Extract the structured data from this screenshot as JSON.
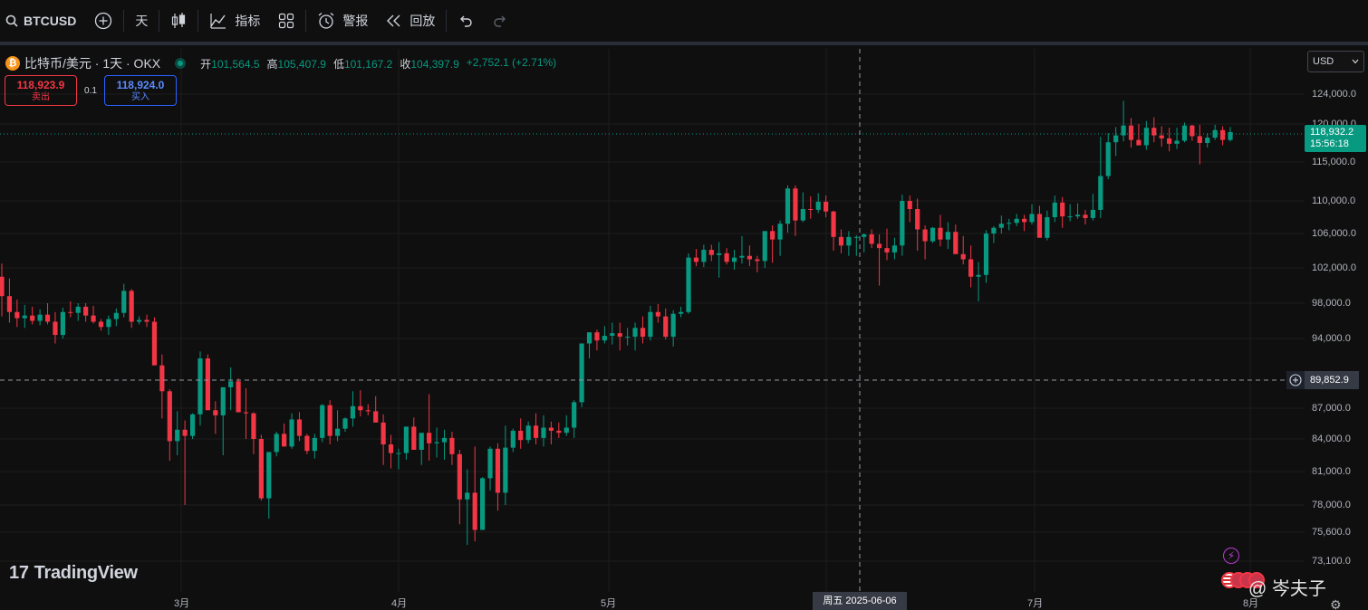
{
  "toolbar": {
    "symbol": "BTCUSD",
    "interval": "天",
    "indicators_label": "指标",
    "alert_label": "警报",
    "replay_label": "回放"
  },
  "legend": {
    "coin_glyph": "₿",
    "title": "比特币/美元 · 1天 · OKX",
    "open_label": "开",
    "open": "101,564.5",
    "high_label": "高",
    "high": "105,407.9",
    "low_label": "低",
    "low": "101,167.2",
    "close_label": "收",
    "close": "104,397.9",
    "change": "+2,752.1 (+2.71%)"
  },
  "trade": {
    "sell_price": "118,923.9",
    "sell_label": "卖出",
    "spread": "0.1",
    "buy_price": "118,924.0",
    "buy_label": "买入"
  },
  "currency": "USD",
  "price_axis": {
    "ticks": [
      "124,000.0",
      "120,000.0",
      "115,000.0",
      "110,000.0",
      "106,000.0",
      "102,000.0",
      "98,000.0",
      "94,000.0",
      "89,852.9",
      "87,000.0",
      "84,000.0",
      "81,000.0",
      "78,000.0",
      "75,600.0",
      "73,100.0"
    ],
    "last_price": "118,932.2",
    "countdown": "15:56:18",
    "crosshair_price": "89,852.9"
  },
  "time_axis": {
    "months": [
      "3月",
      "4月",
      "5月",
      "7月",
      "8月"
    ],
    "crosshair_date": "周五 2025-06-06"
  },
  "logo": {
    "mark": "17",
    "text": "TradingView"
  },
  "watermark": "@ 岑夫子",
  "colors": {
    "up": "#089981",
    "down": "#f23645",
    "bg": "#0f0f0f",
    "grid": "#1e1e1e"
  },
  "chart_data": {
    "type": "candlestick",
    "series_ohlc": [
      [
        101000,
        102500,
        96500,
        98800
      ],
      [
        98800,
        100800,
        95800,
        97000
      ],
      [
        97000,
        98400,
        95300,
        96300
      ],
      [
        96300,
        97800,
        95200,
        96600
      ],
      [
        96600,
        97600,
        95600,
        96000
      ],
      [
        96000,
        97300,
        95500,
        96700
      ],
      [
        96700,
        98000,
        95600,
        95900
      ],
      [
        95900,
        97000,
        93500,
        94400
      ],
      [
        94400,
        97500,
        94000,
        97000
      ],
      [
        97000,
        98200,
        96400,
        96900
      ],
      [
        96900,
        98000,
        96000,
        97600
      ],
      [
        97600,
        98000,
        95900,
        96600
      ],
      [
        96600,
        97700,
        95700,
        95900
      ],
      [
        95900,
        96200,
        94900,
        95300
      ],
      [
        95300,
        96600,
        94400,
        96200
      ],
      [
        96200,
        97400,
        95400,
        96900
      ],
      [
        96900,
        100200,
        96400,
        99400
      ],
      [
        99400,
        99600,
        95200,
        95900
      ],
      [
        95900,
        96500,
        95600,
        96100
      ],
      [
        96100,
        96700,
        95300,
        95900
      ],
      [
        95900,
        96400,
        91800,
        91300
      ],
      [
        91300,
        92400,
        86000,
        88700
      ],
      [
        88700,
        88900,
        82000,
        83800
      ],
      [
        83800,
        86700,
        82500,
        84900
      ],
      [
        84900,
        85800,
        78000,
        84300
      ],
      [
        84300,
        86500,
        84000,
        86400
      ],
      [
        86400,
        92700,
        85300,
        92000
      ],
      [
        92000,
        92400,
        88000,
        86800
      ],
      [
        86800,
        87700,
        84500,
        86300
      ],
      [
        86300,
        86600,
        82500,
        89100
      ],
      [
        89100,
        91100,
        86800,
        89700
      ],
      [
        89700,
        90000,
        86700,
        86600
      ],
      [
        86600,
        89000,
        84000,
        86500
      ],
      [
        86500,
        86600,
        82600,
        84000
      ],
      [
        84000,
        84400,
        78400,
        78600
      ],
      [
        78600,
        81400,
        76800,
        82800
      ],
      [
        82800,
        84700,
        82400,
        84500
      ],
      [
        84500,
        85500,
        83800,
        83300
      ],
      [
        83300,
        86500,
        83100,
        85900
      ],
      [
        85900,
        86600,
        83800,
        84300
      ],
      [
        84300,
        84500,
        82600,
        82900
      ],
      [
        82900,
        84500,
        82200,
        84100
      ],
      [
        84100,
        87400,
        83700,
        87300
      ],
      [
        87300,
        87800,
        83500,
        84300
      ],
      [
        84300,
        86800,
        83800,
        85000
      ],
      [
        85000,
        86100,
        84700,
        86000
      ],
      [
        86000,
        88700,
        85200,
        87200
      ],
      [
        87200,
        88800,
        86200,
        86800
      ],
      [
        86800,
        87400,
        86300,
        86700
      ],
      [
        86700,
        88200,
        85700,
        85600
      ],
      [
        85600,
        86400,
        81600,
        83500
      ],
      [
        83500,
        84400,
        81300,
        82700
      ],
      [
        82700,
        83100,
        81200,
        82700
      ],
      [
        82700,
        85200,
        82100,
        85200
      ],
      [
        85200,
        86100,
        83500,
        83000
      ],
      [
        83000,
        84300,
        81600,
        84600
      ],
      [
        84600,
        88400,
        82000,
        83600
      ],
      [
        83600,
        85100,
        82300,
        83700
      ],
      [
        83700,
        84900,
        82100,
        84100
      ],
      [
        84100,
        84700,
        81600,
        82600
      ],
      [
        82600,
        83000,
        76300,
        78500
      ],
      [
        78500,
        81200,
        74500,
        79100
      ],
      [
        79100,
        83300,
        74800,
        75800
      ],
      [
        75800,
        80500,
        77000,
        80400
      ],
      [
        80400,
        83300,
        79300,
        83100
      ],
      [
        83100,
        83600,
        77500,
        79100
      ],
      [
        79100,
        85300,
        78000,
        83200
      ],
      [
        83200,
        85000,
        82800,
        84800
      ],
      [
        84800,
        86000,
        83100,
        83900
      ],
      [
        83900,
        85700,
        83600,
        85300
      ],
      [
        85300,
        86500,
        83500,
        84100
      ],
      [
        84100,
        86300,
        83300,
        85100
      ],
      [
        85100,
        85700,
        83500,
        84800
      ],
      [
        84800,
        85600,
        84100,
        84600
      ],
      [
        84600,
        86300,
        84300,
        85100
      ],
      [
        85100,
        87800,
        84100,
        87600
      ],
      [
        87600,
        91500,
        87100,
        93500
      ],
      [
        93500,
        94500,
        92000,
        94700
      ],
      [
        94700,
        95000,
        92800,
        93800
      ],
      [
        93800,
        95400,
        93500,
        94300
      ],
      [
        94300,
        95800,
        93400,
        94600
      ],
      [
        94600,
        95800,
        92800,
        94200
      ],
      [
        94200,
        95200,
        93300,
        94200
      ],
      [
        94200,
        95800,
        92800,
        95200
      ],
      [
        95200,
        96500,
        93500,
        94200
      ],
      [
        94200,
        97700,
        93800,
        97000
      ],
      [
        97000,
        97900,
        95800,
        96500
      ],
      [
        96500,
        97400,
        93900,
        94200
      ],
      [
        94200,
        97200,
        93200,
        96800
      ],
      [
        96800,
        97600,
        96400,
        97000
      ],
      [
        97000,
        103700,
        96800,
        103200
      ],
      [
        103200,
        104200,
        102200,
        102700
      ],
      [
        102700,
        104700,
        102100,
        104100
      ],
      [
        104100,
        104700,
        102800,
        103500
      ],
      [
        103500,
        105000,
        100900,
        103700
      ],
      [
        103700,
        104300,
        102400,
        102700
      ],
      [
        102700,
        104100,
        101800,
        103200
      ],
      [
        103200,
        105700,
        102500,
        103400
      ],
      [
        103400,
        104600,
        102200,
        103000
      ],
      [
        103000,
        103400,
        101500,
        102800
      ],
      [
        102800,
        106200,
        102000,
        106300
      ],
      [
        106300,
        107000,
        102600,
        105300
      ],
      [
        105300,
        107600,
        103400,
        107200
      ],
      [
        107200,
        112000,
        106100,
        111600
      ],
      [
        111600,
        112000,
        105700,
        107600
      ],
      [
        107600,
        111100,
        107400,
        109000
      ],
      [
        109000,
        110600,
        107800,
        108900
      ],
      [
        108900,
        111000,
        108500,
        109900
      ],
      [
        109900,
        110700,
        108000,
        108700
      ],
      [
        108700,
        108800,
        104000,
        105600
      ],
      [
        105600,
        106500,
        103700,
        104600
      ],
      [
        104600,
        106300,
        103400,
        105600
      ],
      [
        105600,
        105800,
        103400,
        105600
      ],
      [
        105600,
        106000,
        103800,
        105900
      ],
      [
        105900,
        106500,
        104300,
        104800
      ],
      [
        104800,
        105900,
        100000,
        104300
      ],
      [
        104300,
        106600,
        102900,
        103800
      ],
      [
        103800,
        105500,
        103000,
        104600
      ],
      [
        104600,
        110800,
        103400,
        110000
      ],
      [
        110000,
        110700,
        107400,
        109000
      ],
      [
        109000,
        110300,
        104000,
        106500
      ],
      [
        106500,
        107000,
        103000,
        105100
      ],
      [
        105100,
        106800,
        104900,
        106700
      ],
      [
        106700,
        108300,
        104500,
        105300
      ],
      [
        105300,
        107400,
        104200,
        106200
      ],
      [
        106200,
        107100,
        103900,
        103600
      ],
      [
        103600,
        105700,
        102400,
        103000
      ],
      [
        103000,
        104600,
        99800,
        101000
      ],
      [
        101000,
        102700,
        98200,
        101200
      ],
      [
        101200,
        106400,
        100300,
        106000
      ],
      [
        106000,
        106900,
        104900,
        106700
      ],
      [
        106700,
        108200,
        106000,
        107200
      ],
      [
        107200,
        107800,
        106400,
        107300
      ],
      [
        107300,
        108400,
        106900,
        107800
      ],
      [
        107800,
        108300,
        106300,
        107400
      ],
      [
        107400,
        109600,
        107100,
        108400
      ],
      [
        108400,
        109400,
        106900,
        105500
      ],
      [
        105500,
        108800,
        105200,
        108000
      ],
      [
        108000,
        110700,
        107400,
        109800
      ],
      [
        109800,
        110500,
        106700,
        108100
      ],
      [
        108100,
        109600,
        107500,
        108100
      ],
      [
        108100,
        109700,
        107800,
        108300
      ],
      [
        108300,
        108900,
        107100,
        107900
      ],
      [
        107900,
        110900,
        107600,
        108900
      ],
      [
        108900,
        118300,
        107900,
        113200
      ],
      [
        113200,
        118800,
        112800,
        117600
      ],
      [
        117600,
        119600,
        115800,
        118500
      ],
      [
        118500,
        123100,
        117700,
        119800
      ],
      [
        119800,
        120800,
        116900,
        117900
      ],
      [
        117900,
        120000,
        117400,
        117200
      ],
      [
        117200,
        120400,
        116600,
        119500
      ],
      [
        119500,
        120900,
        117600,
        118500
      ],
      [
        118500,
        119700,
        117000,
        118100
      ],
      [
        118100,
        119500,
        116400,
        117400
      ],
      [
        117400,
        119500,
        116700,
        117800
      ],
      [
        117800,
        120200,
        117600,
        119800
      ],
      [
        119800,
        119900,
        117800,
        118400
      ],
      [
        118400,
        119900,
        114700,
        117500
      ],
      [
        117500,
        118800,
        116900,
        118200
      ],
      [
        118200,
        119900,
        117900,
        119200
      ],
      [
        119200,
        119700,
        117200,
        117900
      ],
      [
        117900,
        119600,
        117700,
        118932
      ]
    ],
    "y_range": [
      72000,
      126500
    ],
    "x_months": [
      "3月",
      "4月",
      "5月",
      "7月",
      "8月"
    ],
    "crosshair": {
      "date": "周五 2025-06-06",
      "price": "89,852.9"
    }
  }
}
